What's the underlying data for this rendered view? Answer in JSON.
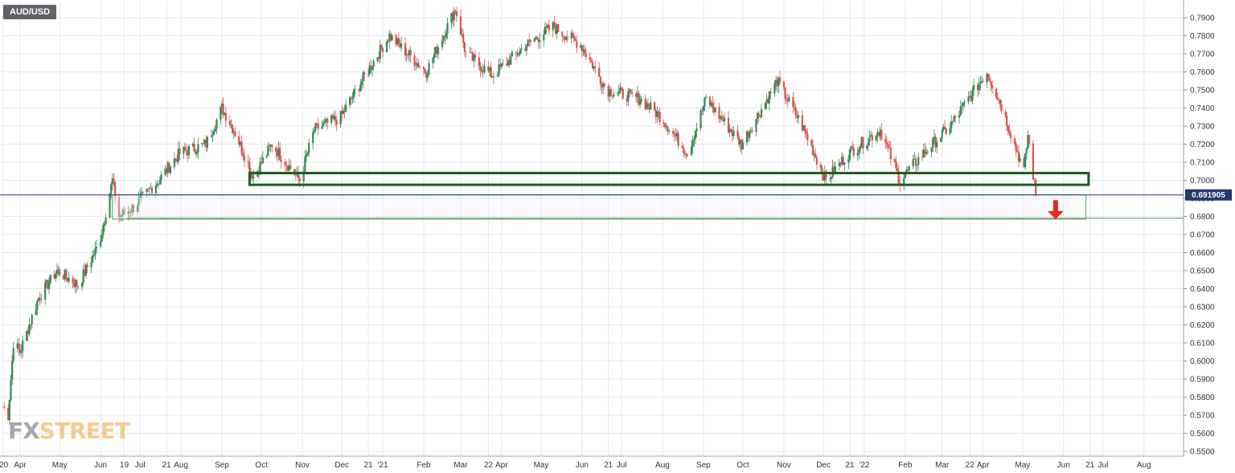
{
  "symbol": "AUD/USD",
  "watermark": {
    "fx": "FX",
    "street": "STREET"
  },
  "current_price_label": "0.691905",
  "colors": {
    "up": "#2e8b57",
    "down": "#d9534f",
    "zone": "#1e5e1e",
    "zone_light": "#5a9a5a",
    "arrow": "#e8271e",
    "price_line": "#243a6b",
    "grid": "#e6e8ef",
    "price_tag_bg": "#243a6b"
  },
  "chart_data": {
    "type": "candlestick",
    "title": "AUD/USD",
    "xlabel": "",
    "ylabel": "",
    "ylim": [
      0.55,
      0.8
    ],
    "xlim": [
      "2020-03-18",
      "2022-08-31"
    ],
    "grid": true,
    "y_ticks": [
      "0.7900",
      "0.7800",
      "0.7700",
      "0.7600",
      "0.7500",
      "0.7400",
      "0.7300",
      "0.7200",
      "0.7100",
      "0.7000",
      "0.6900",
      "0.6800",
      "0.6700",
      "0.6600",
      "0.6500",
      "0.6400",
      "0.6300",
      "0.6200",
      "0.6100",
      "0.6000",
      "0.5900",
      "0.5800",
      "0.5700",
      "0.5600",
      "0.5500"
    ],
    "x_ticks": [
      {
        "label": "'20",
        "date": "2020-03-19"
      },
      {
        "label": "Apr",
        "date": "2020-04-01"
      },
      {
        "label": "May",
        "date": "2020-05-01"
      },
      {
        "label": "Jun",
        "date": "2020-06-01"
      },
      {
        "label": "19",
        "date": "2020-06-19"
      },
      {
        "label": "Jul",
        "date": "2020-07-01"
      },
      {
        "label": "21",
        "date": "2020-07-21"
      },
      {
        "label": "Aug",
        "date": "2020-08-01"
      },
      {
        "label": "Sep",
        "date": "2020-09-01"
      },
      {
        "label": "Oct",
        "date": "2020-10-01"
      },
      {
        "label": "Nov",
        "date": "2020-11-01"
      },
      {
        "label": "Dec",
        "date": "2020-12-01"
      },
      {
        "label": "21",
        "date": "2020-12-21"
      },
      {
        "label": "'21",
        "date": "2021-01-01"
      },
      {
        "label": "Feb",
        "date": "2021-02-01"
      },
      {
        "label": "Mar",
        "date": "2021-03-01"
      },
      {
        "label": "22",
        "date": "2021-03-22"
      },
      {
        "label": "Apr",
        "date": "2021-04-01"
      },
      {
        "label": "May",
        "date": "2021-05-01"
      },
      {
        "label": "Jun",
        "date": "2021-06-01"
      },
      {
        "label": "21",
        "date": "2021-06-21"
      },
      {
        "label": "Jul",
        "date": "2021-07-01"
      },
      {
        "label": "Aug",
        "date": "2021-08-01"
      },
      {
        "label": "Sep",
        "date": "2021-09-01"
      },
      {
        "label": "Oct",
        "date": "2021-10-01"
      },
      {
        "label": "Nov",
        "date": "2021-11-01"
      },
      {
        "label": "Dec",
        "date": "2021-12-01"
      },
      {
        "label": "21",
        "date": "2021-12-21"
      },
      {
        "label": "'22",
        "date": "2022-01-01"
      },
      {
        "label": "Feb",
        "date": "2022-02-01"
      },
      {
        "label": "Mar",
        "date": "2022-03-01"
      },
      {
        "label": "22",
        "date": "2022-03-22"
      },
      {
        "label": "Apr",
        "date": "2022-04-01"
      },
      {
        "label": "May",
        "date": "2022-05-01"
      },
      {
        "label": "Jun",
        "date": "2022-06-01"
      },
      {
        "label": "21",
        "date": "2022-06-21"
      },
      {
        "label": "Jul",
        "date": "2022-07-01"
      },
      {
        "label": "Aug",
        "date": "2022-08-01"
      }
    ],
    "current_price": 0.691905,
    "anchor_points": [
      {
        "date": "2020-03-19",
        "close": 0.575
      },
      {
        "date": "2020-03-23",
        "close": 0.57
      },
      {
        "date": "2020-03-27",
        "close": 0.61
      },
      {
        "date": "2020-04-01",
        "close": 0.605
      },
      {
        "date": "2020-04-15",
        "close": 0.635
      },
      {
        "date": "2020-04-29",
        "close": 0.65
      },
      {
        "date": "2020-05-15",
        "close": 0.642
      },
      {
        "date": "2020-05-31",
        "close": 0.665
      },
      {
        "date": "2020-06-10",
        "close": 0.7
      },
      {
        "date": "2020-06-15",
        "close": 0.68
      },
      {
        "date": "2020-06-26",
        "close": 0.685
      },
      {
        "date": "2020-07-15",
        "close": 0.7
      },
      {
        "date": "2020-07-31",
        "close": 0.715
      },
      {
        "date": "2020-08-20",
        "close": 0.72
      },
      {
        "date": "2020-09-01",
        "close": 0.74
      },
      {
        "date": "2020-09-10",
        "close": 0.728
      },
      {
        "date": "2020-09-25",
        "close": 0.702
      },
      {
        "date": "2020-10-09",
        "close": 0.72
      },
      {
        "date": "2020-10-30",
        "close": 0.7
      },
      {
        "date": "2020-11-10",
        "close": 0.728
      },
      {
        "date": "2020-11-30",
        "close": 0.735
      },
      {
        "date": "2020-12-20",
        "close": 0.76
      },
      {
        "date": "2021-01-06",
        "close": 0.78
      },
      {
        "date": "2021-01-20",
        "close": 0.77
      },
      {
        "date": "2021-02-03",
        "close": 0.76
      },
      {
        "date": "2021-02-25",
        "close": 0.795
      },
      {
        "date": "2021-03-05",
        "close": 0.77
      },
      {
        "date": "2021-03-25",
        "close": 0.758
      },
      {
        "date": "2021-04-20",
        "close": 0.775
      },
      {
        "date": "2021-05-10",
        "close": 0.785
      },
      {
        "date": "2021-05-31",
        "close": 0.775
      },
      {
        "date": "2021-06-20",
        "close": 0.75
      },
      {
        "date": "2021-07-15",
        "close": 0.745
      },
      {
        "date": "2021-07-31",
        "close": 0.735
      },
      {
        "date": "2021-08-20",
        "close": 0.715
      },
      {
        "date": "2021-09-03",
        "close": 0.745
      },
      {
        "date": "2021-09-30",
        "close": 0.72
      },
      {
        "date": "2021-10-27",
        "close": 0.755
      },
      {
        "date": "2021-11-15",
        "close": 0.73
      },
      {
        "date": "2021-12-03",
        "close": 0.7
      },
      {
        "date": "2021-12-20",
        "close": 0.715
      },
      {
        "date": "2022-01-13",
        "close": 0.728
      },
      {
        "date": "2022-01-28",
        "close": 0.7
      },
      {
        "date": "2022-02-15",
        "close": 0.715
      },
      {
        "date": "2022-03-07",
        "close": 0.73
      },
      {
        "date": "2022-04-04",
        "close": 0.76
      },
      {
        "date": "2022-04-14",
        "close": 0.743
      },
      {
        "date": "2022-05-02",
        "close": 0.705
      },
      {
        "date": "2022-05-05",
        "close": 0.725
      },
      {
        "date": "2022-05-11",
        "close": 0.6919
      }
    ],
    "annotations": [
      {
        "type": "zone",
        "name": "support-zone-upper",
        "x_start": "2020-09-22",
        "x_end": "2022-06-20",
        "y_low": 0.6975,
        "y_high": 0.704,
        "emphasis": "strong"
      },
      {
        "type": "zone",
        "name": "target-zone-lower",
        "x_start": "2020-06-10",
        "x_end": "2022-06-18",
        "y_low": 0.6785,
        "y_high": 0.692,
        "emphasis": "light"
      },
      {
        "type": "hline",
        "name": "target-line",
        "x_start": "2020-06-21",
        "x_end": "2022-08-31",
        "y": 0.679
      },
      {
        "type": "arrow",
        "name": "down-arrow",
        "date": "2022-05-26",
        "y_from": 0.689,
        "y_to": 0.6785,
        "direction": "down"
      }
    ]
  }
}
